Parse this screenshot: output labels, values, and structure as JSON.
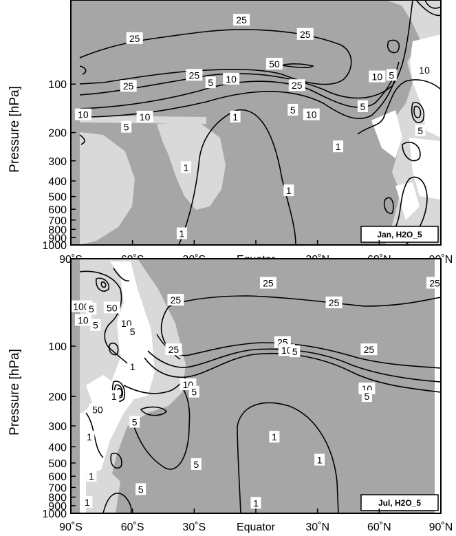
{
  "chart_data": [
    {
      "type": "contour",
      "panel_label": "Jan, H2O_5",
      "ylabel": "Pressure [hPa]",
      "x_tick_labels": [
        "90˚S",
        "60˚S",
        "30˚S",
        "Equator",
        "30˚N",
        "60˚N",
        "90˚N"
      ],
      "y_tick_labels": [
        "100",
        "200",
        "300",
        "400",
        "500",
        "600",
        "700",
        "800",
        "900",
        "1000"
      ],
      "xlim": [
        -90,
        90
      ],
      "ylim": [
        1000,
        30
      ],
      "y_scale": "log",
      "shading": {
        "dark": "#a6a6a6",
        "light": "#d9d9d9",
        "white": "#ffffff"
      },
      "contour_levels": [
        1,
        5,
        10,
        25,
        50
      ],
      "contour_labels": [
        {
          "text": "25",
          "x": -7,
          "p": 40
        },
        {
          "text": "25",
          "x": -59,
          "p": 52
        },
        {
          "text": "25",
          "x": 24,
          "p": 49
        },
        {
          "text": "50",
          "x": 9,
          "p": 75
        },
        {
          "text": "25",
          "x": -30,
          "p": 88
        },
        {
          "text": "25",
          "x": -62,
          "p": 103
        },
        {
          "text": "5",
          "x": -22,
          "p": 98
        },
        {
          "text": "10",
          "x": -12,
          "p": 93
        },
        {
          "text": "25",
          "x": 20,
          "p": 102
        },
        {
          "text": "10",
          "x": 59,
          "p": 90
        },
        {
          "text": "5",
          "x": 66,
          "p": 88
        },
        {
          "text": "10",
          "x": 82,
          "p": 82
        },
        {
          "text": "10",
          "x": -84,
          "p": 155
        },
        {
          "text": "10",
          "x": -54,
          "p": 160
        },
        {
          "text": "5",
          "x": -63,
          "p": 185
        },
        {
          "text": "5",
          "x": 18,
          "p": 145
        },
        {
          "text": "10",
          "x": 27,
          "p": 155
        },
        {
          "text": "1",
          "x": -10,
          "p": 160
        },
        {
          "text": "5",
          "x": 52,
          "p": 138
        },
        {
          "text": "1",
          "x": 40,
          "p": 245
        },
        {
          "text": "5",
          "x": 80,
          "p": 195
        },
        {
          "text": "1",
          "x": -34,
          "p": 330
        },
        {
          "text": "1",
          "x": 16,
          "p": 460
        },
        {
          "text": "1",
          "x": -36,
          "p": 850
        }
      ]
    },
    {
      "type": "contour",
      "panel_label": "Jul, H2O_5",
      "ylabel": "Pressure [hPa]",
      "x_tick_labels": [
        "90˚S",
        "60˚S",
        "30˚S",
        "Equator",
        "30˚N",
        "60˚N",
        "90˚N"
      ],
      "y_tick_labels": [
        "100",
        "200",
        "300",
        "400",
        "500",
        "600",
        "700",
        "800",
        "900",
        "1000"
      ],
      "xlim": [
        -90,
        90
      ],
      "ylim": [
        1000,
        30
      ],
      "y_scale": "log",
      "shading": {
        "dark": "#a6a6a6",
        "light": "#d9d9d9",
        "white": "#ffffff"
      },
      "contour_levels": [
        1,
        5,
        10,
        25,
        50,
        100
      ],
      "contour_labels": [
        {
          "text": "100",
          "x": -85,
          "p": 58
        },
        {
          "text": "50",
          "x": -70,
          "p": 59
        },
        {
          "text": "5",
          "x": -80,
          "p": 60
        },
        {
          "text": "10",
          "x": -84,
          "p": 70
        },
        {
          "text": "5",
          "x": -78,
          "p": 75
        },
        {
          "text": "10",
          "x": -63,
          "p": 73
        },
        {
          "text": "5",
          "x": -60,
          "p": 82
        },
        {
          "text": "25",
          "x": -39,
          "p": 53
        },
        {
          "text": "25",
          "x": 6,
          "p": 42
        },
        {
          "text": "25",
          "x": 38,
          "p": 55
        },
        {
          "text": "25",
          "x": 87,
          "p": 42
        },
        {
          "text": "25",
          "x": -40,
          "p": 105
        },
        {
          "text": "25",
          "x": 13,
          "p": 95
        },
        {
          "text": "10",
          "x": 15,
          "p": 106
        },
        {
          "text": "5",
          "x": 19,
          "p": 108
        },
        {
          "text": "25",
          "x": 55,
          "p": 105
        },
        {
          "text": "10",
          "x": -33,
          "p": 170
        },
        {
          "text": "5",
          "x": -30,
          "p": 188
        },
        {
          "text": "1",
          "x": -60,
          "p": 133
        },
        {
          "text": "10",
          "x": 54,
          "p": 180
        },
        {
          "text": "5",
          "x": 54,
          "p": 200
        },
        {
          "text": "1",
          "x": -69,
          "p": 200
        },
        {
          "text": "50",
          "x": -77,
          "p": 240
        },
        {
          "text": "5",
          "x": -59,
          "p": 285
        },
        {
          "text": "1",
          "x": -81,
          "p": 350
        },
        {
          "text": "1",
          "x": 9,
          "p": 350
        },
        {
          "text": "1",
          "x": 31,
          "p": 480
        },
        {
          "text": "5",
          "x": -29,
          "p": 510
        },
        {
          "text": "5",
          "x": -56,
          "p": 720
        },
        {
          "text": "1",
          "x": -80,
          "p": 600
        },
        {
          "text": "1",
          "x": -82,
          "p": 860
        },
        {
          "text": "1",
          "x": 0,
          "p": 870
        }
      ]
    }
  ]
}
